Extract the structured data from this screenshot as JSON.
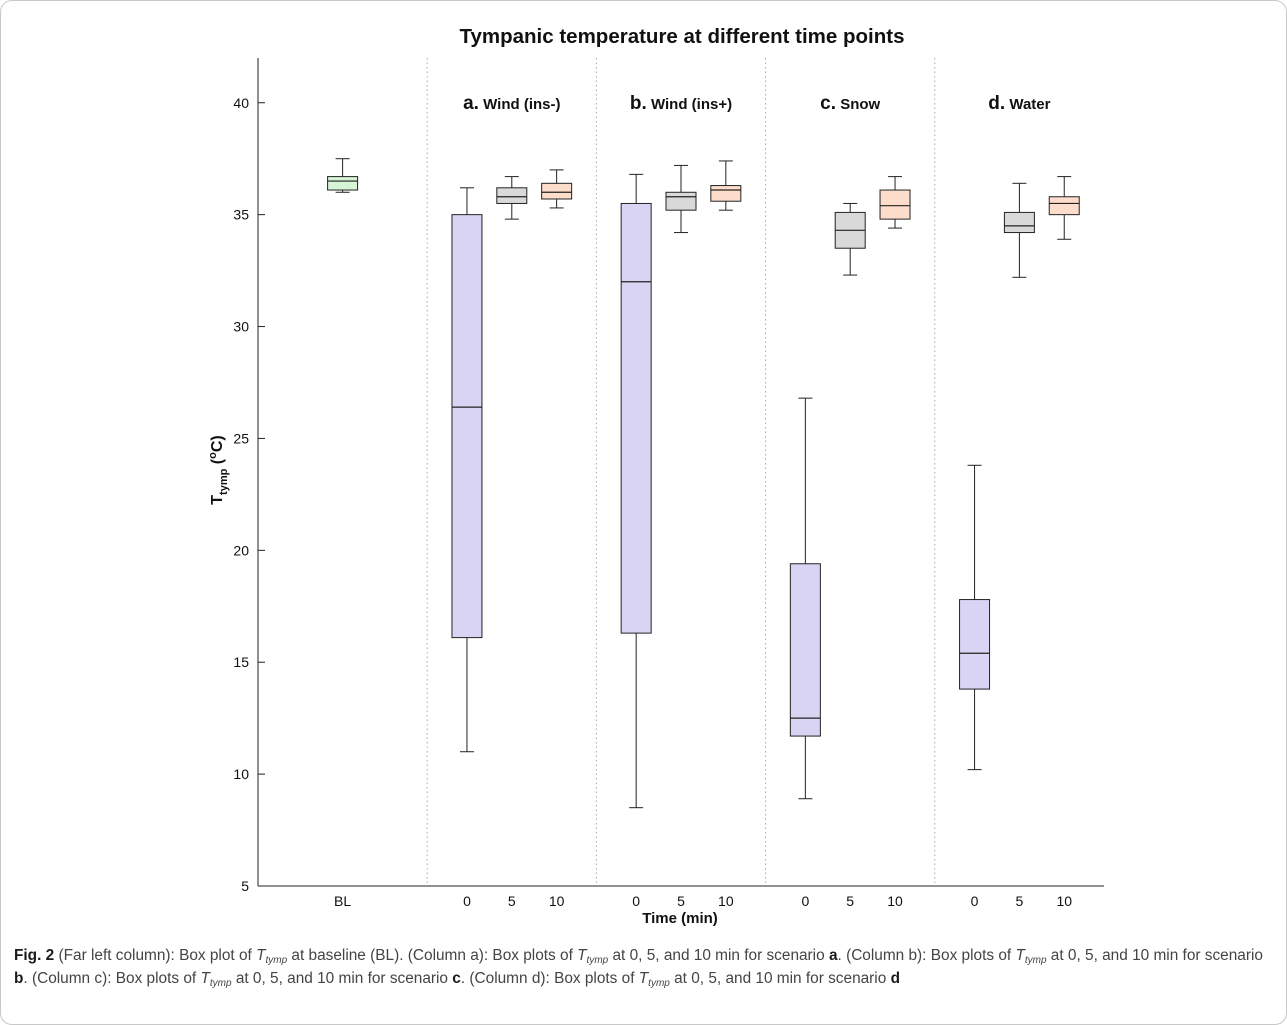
{
  "chart_data": {
    "type": "box",
    "title": "Tympanic temperature at different time points",
    "ylabel_main": "T",
    "ylabel_sub": "tymp",
    "ylabel_unit_open": " (",
    "ylabel_unit_sup": "o",
    "ylabel_unit_rest": "C)",
    "xlabel": "Time (min)",
    "ylim": [
      5,
      42
    ],
    "yticks": [
      5,
      10,
      15,
      20,
      25,
      30,
      35,
      40
    ],
    "grid": false,
    "colors": {
      "baseline": "#d6f5d6",
      "t0": "#d9d4f3",
      "t5": "#d9d9d9",
      "t10": "#fcdccb",
      "stroke": "#222222",
      "separator": "#aaaaaa"
    },
    "panels": [
      {
        "letter": "",
        "name": "",
        "boxes": [
          {
            "label": "BL",
            "series": "baseline",
            "whisker_low": 36.0,
            "q1": 36.1,
            "median": 36.5,
            "q3": 36.7,
            "whisker_high": 37.5
          }
        ]
      },
      {
        "letter": "a.",
        "name": "Wind (ins-)",
        "boxes": [
          {
            "label": "0",
            "series": "t0",
            "whisker_low": 11.0,
            "q1": 16.1,
            "median": 26.4,
            "q3": 35.0,
            "whisker_high": 36.2
          },
          {
            "label": "5",
            "series": "t5",
            "whisker_low": 34.8,
            "q1": 35.5,
            "median": 35.8,
            "q3": 36.2,
            "whisker_high": 36.7
          },
          {
            "label": "10",
            "series": "t10",
            "whisker_low": 35.3,
            "q1": 35.7,
            "median": 36.0,
            "q3": 36.4,
            "whisker_high": 37.0
          }
        ]
      },
      {
        "letter": "b.",
        "name": "Wind (ins+)",
        "boxes": [
          {
            "label": "0",
            "series": "t0",
            "whisker_low": 8.5,
            "q1": 16.3,
            "median": 32.0,
            "q3": 35.5,
            "whisker_high": 36.8
          },
          {
            "label": "5",
            "series": "t5",
            "whisker_low": 34.2,
            "q1": 35.2,
            "median": 35.8,
            "q3": 36.0,
            "whisker_high": 37.2
          },
          {
            "label": "10",
            "series": "t10",
            "whisker_low": 35.2,
            "q1": 35.6,
            "median": 36.1,
            "q3": 36.3,
            "whisker_high": 37.4
          }
        ]
      },
      {
        "letter": "c.",
        "name": "Snow",
        "boxes": [
          {
            "label": "0",
            "series": "t0",
            "whisker_low": 8.9,
            "q1": 11.7,
            "median": 12.5,
            "q3": 19.4,
            "whisker_high": 26.8
          },
          {
            "label": "5",
            "series": "t5",
            "whisker_low": 32.3,
            "q1": 33.5,
            "median": 34.3,
            "q3": 35.1,
            "whisker_high": 35.5
          },
          {
            "label": "10",
            "series": "t10",
            "whisker_low": 34.4,
            "q1": 34.8,
            "median": 35.4,
            "q3": 36.1,
            "whisker_high": 36.7
          }
        ]
      },
      {
        "letter": "d.",
        "name": "Water",
        "boxes": [
          {
            "label": "0",
            "series": "t0",
            "whisker_low": 10.2,
            "q1": 13.8,
            "median": 15.4,
            "q3": 17.8,
            "whisker_high": 23.8
          },
          {
            "label": "5",
            "series": "t5",
            "whisker_low": 32.2,
            "q1": 34.2,
            "median": 34.5,
            "q3": 35.1,
            "whisker_high": 36.4
          },
          {
            "label": "10",
            "series": "t10",
            "whisker_low": 33.9,
            "q1": 35.0,
            "median": 35.5,
            "q3": 35.8,
            "whisker_high": 36.7
          }
        ]
      }
    ]
  },
  "caption": {
    "fig": "Fig. 2",
    "p1": " (Far left column): Box plot of ",
    "var": "T",
    "var_sub": "tymp",
    "p2": " at baseline (BL). (Column a): Box plots of ",
    "p3": " at 0, 5, and 10 min for scenario ",
    "s_a": "a",
    "p4": ". (Column b): Box plots of ",
    "p5": " at 0, 5, and 10 min for scenario ",
    "s_b": "b",
    "p6": ". (Column c): Box plots of ",
    "p7": " at 0, 5, and 10 min for scenario ",
    "s_c": "c",
    "p8": ". (Column d): Box plots of ",
    "p9": " at 0, 5, and 10 min for scenario ",
    "s_d": "d"
  }
}
